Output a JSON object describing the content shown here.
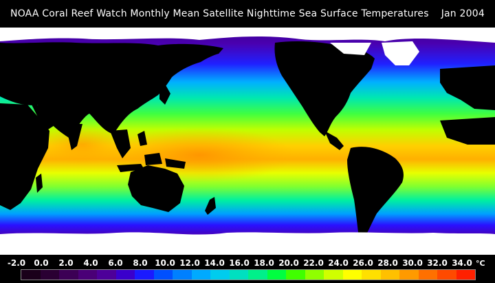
{
  "header": {
    "title": "NOAA Coral Reef Watch Monthly Mean Satellite Nighttime Sea Surface Temperatures",
    "date": "Jan 2004"
  },
  "legend": {
    "unit": "°C",
    "ticks": [
      "-2.0",
      "0.0",
      "2.0",
      "4.0",
      "6.0",
      "8.0",
      "10.0",
      "12.0",
      "14.0",
      "16.0",
      "18.0",
      "20.0",
      "22.0",
      "24.0",
      "26.0",
      "28.0",
      "30.0",
      "32.0",
      "34.0"
    ],
    "colors": [
      "#1a001a",
      "#2a0033",
      "#3c0055",
      "#4a0077",
      "#4d0099",
      "#3a00cc",
      "#1a1aff",
      "#0050ff",
      "#0080ff",
      "#00aaff",
      "#00ccee",
      "#00e0c0",
      "#00f08a",
      "#00ff40",
      "#40ff00",
      "#90ff00",
      "#d0ff00",
      "#ffff00",
      "#ffe000",
      "#ffc000",
      "#ff9a00",
      "#ff7000",
      "#ff4a00",
      "#ff2000"
    ]
  },
  "map": {
    "land_color": "#000000",
    "ice_color": "#ffffff",
    "ocean_colors": {
      "polar": "#3a00a0",
      "cold": "#0050ff",
      "cool": "#00c8e8",
      "mild": "#00f070",
      "warm": "#c8ff00",
      "hot": "#ffb000"
    }
  }
}
